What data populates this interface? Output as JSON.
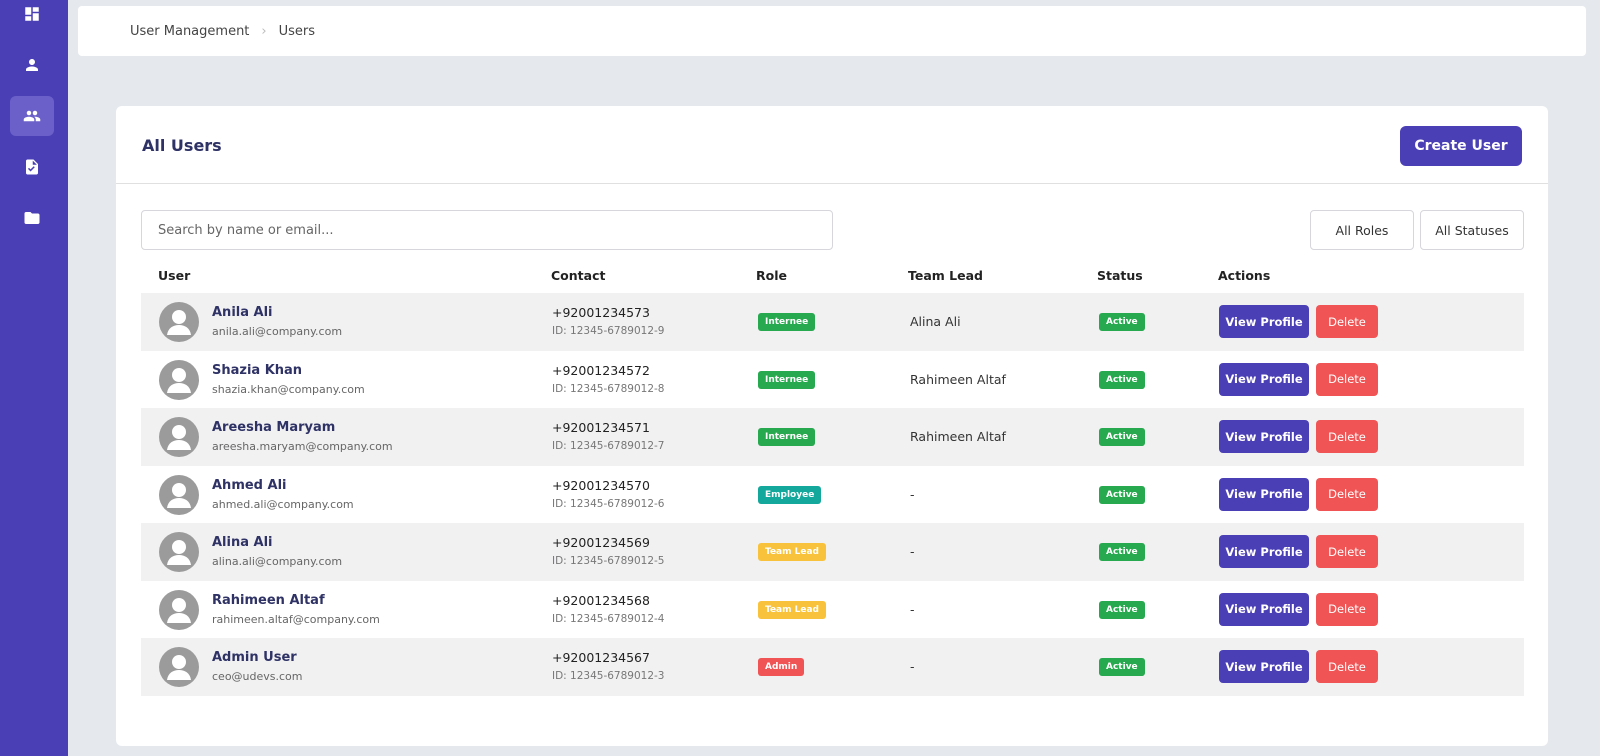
{
  "sidebar": {
    "items": [
      {
        "icon": "dashboard-icon"
      },
      {
        "icon": "user-icon"
      },
      {
        "icon": "users-icon",
        "active": true
      },
      {
        "icon": "clipboard-check-icon"
      },
      {
        "icon": "folder-icon"
      }
    ]
  },
  "breadcrumb": {
    "parent": "User Management",
    "current": "Users"
  },
  "page": {
    "title": "All Users",
    "create_button": "Create User",
    "search_placeholder": "Search by name or email...",
    "filter_roles": "All Roles",
    "filter_statuses": "All Statuses"
  },
  "table": {
    "headers": {
      "user": "User",
      "contact": "Contact",
      "role": "Role",
      "team_lead": "Team Lead",
      "status": "Status",
      "actions": "Actions"
    },
    "view_label": "View Profile",
    "delete_label": "Delete",
    "rows": [
      {
        "name": "Anila Ali",
        "email": "anila.ali@company.com",
        "phone": "+92001234573",
        "id": "ID: 12345-6789012-9",
        "role": "Internee",
        "team_lead": "Alina Ali",
        "status": "Active"
      },
      {
        "name": "Shazia Khan",
        "email": "shazia.khan@company.com",
        "phone": "+92001234572",
        "id": "ID: 12345-6789012-8",
        "role": "Internee",
        "team_lead": "Rahimeen Altaf",
        "status": "Active"
      },
      {
        "name": "Areesha Maryam",
        "email": "areesha.maryam@company.com",
        "phone": "+92001234571",
        "id": "ID: 12345-6789012-7",
        "role": "Internee",
        "team_lead": "Rahimeen Altaf",
        "status": "Active"
      },
      {
        "name": "Ahmed Ali",
        "email": "ahmed.ali@company.com",
        "phone": "+92001234570",
        "id": "ID: 12345-6789012-6",
        "role": "Employee",
        "team_lead": "-",
        "status": "Active"
      },
      {
        "name": "Alina Ali",
        "email": "alina.ali@company.com",
        "phone": "+92001234569",
        "id": "ID: 12345-6789012-5",
        "role": "Team Lead",
        "team_lead": "-",
        "status": "Active"
      },
      {
        "name": "Rahimeen Altaf",
        "email": "rahimeen.altaf@company.com",
        "phone": "+92001234568",
        "id": "ID: 12345-6789012-4",
        "role": "Team Lead",
        "team_lead": "-",
        "status": "Active"
      },
      {
        "name": "Admin User",
        "email": "ceo@udevs.com",
        "phone": "+92001234567",
        "id": "ID: 12345-6789012-3",
        "role": "Admin",
        "team_lead": "-",
        "status": "Active"
      }
    ]
  },
  "colors": {
    "brand": "#4b3fb5",
    "danger": "#f05454",
    "active": "#27a94f",
    "role_internee": "#27a94f",
    "role_employee": "#14a89c",
    "role_team_lead": "#f9c23c",
    "role_admin": "#f05454"
  }
}
